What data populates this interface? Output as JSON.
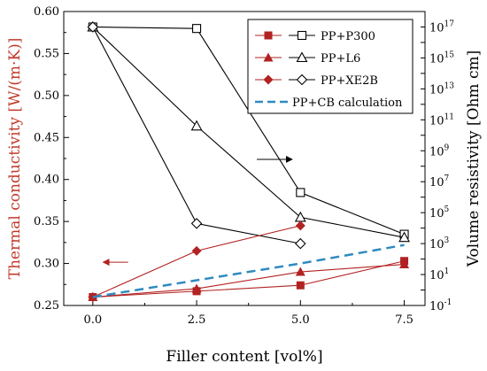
{
  "chart_data": {
    "type": "line",
    "xlabel": "Filler content [vol%]",
    "ylabel_left": "Thermal conductivity [W/(m·K)]",
    "ylabel_right": "Volume resistivity [Ohm cm]",
    "x_ticks": [
      "0.0",
      "2.5",
      "5.0",
      "7.5"
    ],
    "xlim": [
      -0.7,
      8.0
    ],
    "ylim_left": [
      0.25,
      0.6
    ],
    "left_ticks": [
      "0.25",
      "0.30",
      "0.35",
      "0.40",
      "0.45",
      "0.50",
      "0.55",
      "0.60"
    ],
    "ylim_right_log10": [
      -1,
      18
    ],
    "right_ticks": [
      {
        "base": "10",
        "exp": "-1",
        "log": -1
      },
      {
        "base": "10",
        "exp": "1",
        "log": 1
      },
      {
        "base": "10",
        "exp": "3",
        "log": 3
      },
      {
        "base": "10",
        "exp": "5",
        "log": 5
      },
      {
        "base": "10",
        "exp": "7",
        "log": 7
      },
      {
        "base": "10",
        "exp": "9",
        "log": 9
      },
      {
        "base": "10",
        "exp": "11",
        "log": 11
      },
      {
        "base": "10",
        "exp": "13",
        "log": 13
      },
      {
        "base": "10",
        "exp": "15",
        "log": 15
      },
      {
        "base": "10",
        "exp": "17",
        "log": 17
      }
    ],
    "colors": {
      "thermal": "#b22222",
      "resistivity": "#000000",
      "calc": "#2e8bc0",
      "left_axis_text": "#c0392b"
    },
    "series": [
      {
        "name": "PP+P300",
        "axis": "right",
        "marker": "open-square",
        "x": [
          0,
          2.5,
          5,
          7.5
        ],
        "y": [
          1e+17,
          8e+16,
          2000000.0,
          4000.0
        ]
      },
      {
        "name": "PP+L6",
        "axis": "right",
        "marker": "open-triangle",
        "x": [
          0,
          2.5,
          5,
          7.5
        ],
        "y": [
          1e+17,
          40000000000.0,
          50000.0,
          2500.0
        ]
      },
      {
        "name": "PP+XE2B",
        "axis": "right",
        "marker": "open-diamond",
        "x": [
          0,
          2.5,
          5
        ],
        "y": [
          1e+17,
          20000.0,
          1000.0
        ]
      },
      {
        "name": "PP+P300",
        "axis": "left",
        "marker": "filled-square",
        "x": [
          0,
          2.5,
          5,
          7.5
        ],
        "y": [
          0.26,
          0.267,
          0.274,
          0.303
        ]
      },
      {
        "name": "PP+L6",
        "axis": "left",
        "marker": "filled-triangle",
        "x": [
          0,
          2.5,
          5,
          7.5
        ],
        "y": [
          0.26,
          0.27,
          0.29,
          0.299
        ]
      },
      {
        "name": "PP+XE2B",
        "axis": "left",
        "marker": "filled-diamond",
        "x": [
          0,
          2.5,
          5
        ],
        "y": [
          0.26,
          0.315,
          0.345
        ]
      },
      {
        "name": "PP+CB calculation",
        "axis": "left",
        "marker": "dashed",
        "x": [
          0,
          2.5,
          5,
          7.5
        ],
        "y": [
          0.26,
          0.28,
          0.3,
          0.322
        ]
      }
    ],
    "legend": {
      "placement": "top-right",
      "entries": [
        {
          "label": "PP+P300",
          "filled": "filled-square",
          "open": "open-square"
        },
        {
          "label": "PP+L6",
          "filled": "filled-triangle",
          "open": "open-triangle"
        },
        {
          "label": "PP+XE2B",
          "filled": "filled-diamond",
          "open": "open-diamond"
        },
        {
          "label": "PP+CB calculation",
          "filled": "dashed",
          "open": ""
        }
      ]
    },
    "annotations": [
      {
        "name": "left-arrow",
        "direction": "left",
        "color": "#b22222",
        "x_from": 0.85,
        "x_to": 0.25,
        "y_left": 0.3015
      },
      {
        "name": "right-arrow",
        "direction": "right",
        "color": "#000000",
        "x_from": 3.95,
        "x_to": 4.8,
        "y_left": 0.424
      }
    ]
  }
}
